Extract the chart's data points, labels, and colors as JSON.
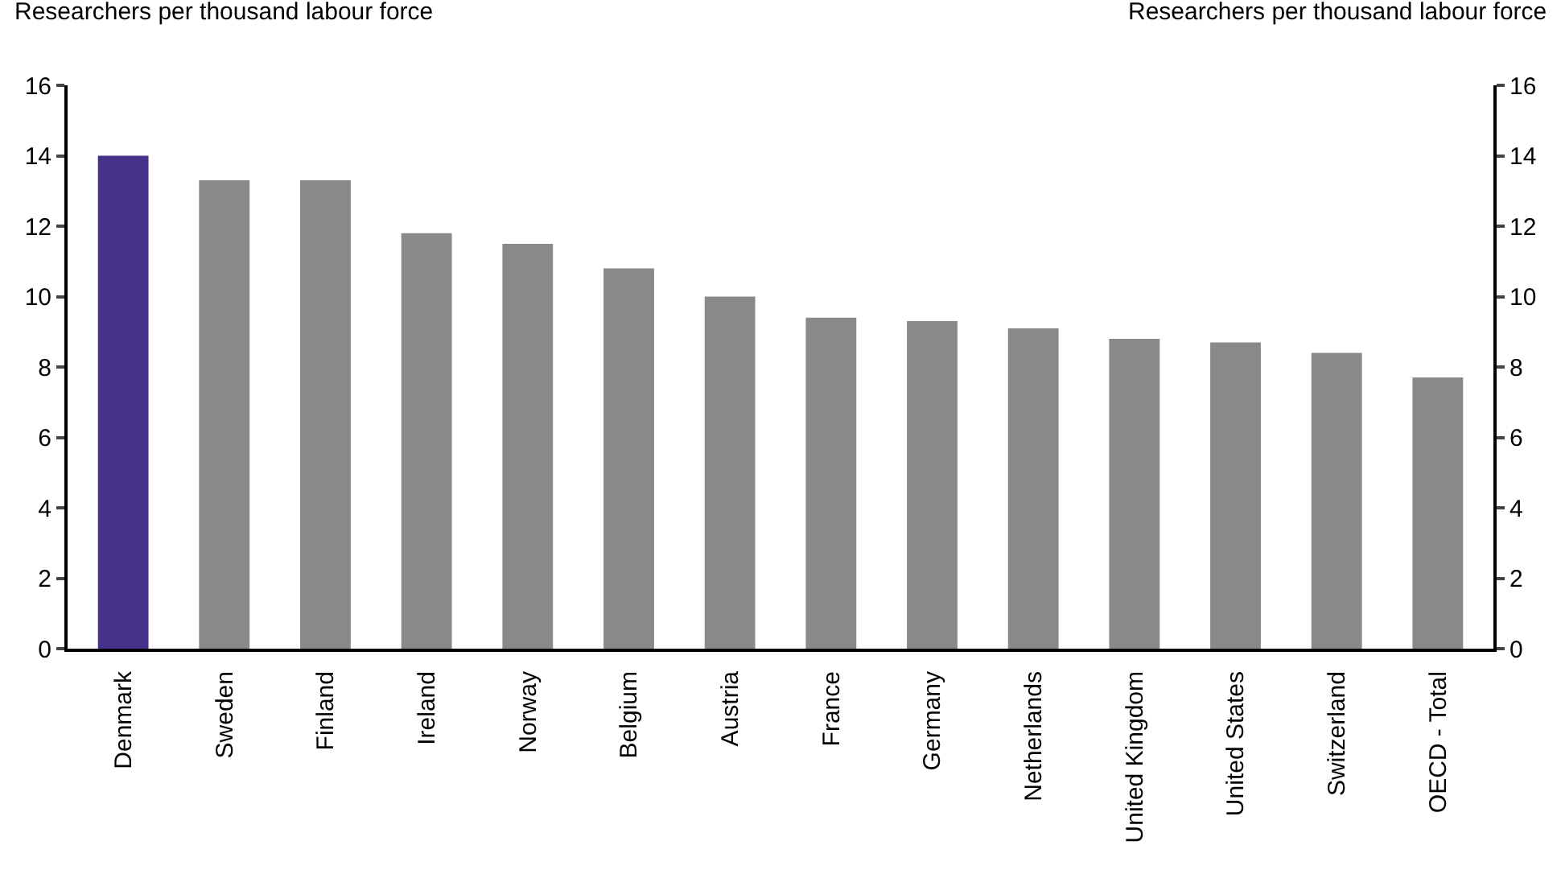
{
  "chart_data": {
    "type": "bar",
    "ylabel": "Researchers per thousand labour force",
    "y2label": "Researchers per thousand labour force",
    "categories": [
      "Denmark",
      "Sweden",
      "Finland",
      "Ireland",
      "Norway",
      "Belgium",
      "Austria",
      "France",
      "Germany",
      "Netherlands",
      "United Kingdom",
      "United States",
      "Switzerland",
      "OECD - Total"
    ],
    "values": [
      14.0,
      13.3,
      13.3,
      11.8,
      11.5,
      10.8,
      10.0,
      9.4,
      9.3,
      9.1,
      8.8,
      8.7,
      8.4,
      7.7
    ],
    "colors": [
      "#46328a",
      "#898989",
      "#898989",
      "#898989",
      "#898989",
      "#898989",
      "#898989",
      "#898989",
      "#898989",
      "#898989",
      "#898989",
      "#898989",
      "#898989",
      "#898989"
    ],
    "ylim": [
      0,
      16
    ],
    "yticks": [
      0,
      2,
      4,
      6,
      8,
      10,
      12,
      14,
      16
    ],
    "y2lim": [
      0,
      16
    ],
    "y2ticks": [
      0,
      2,
      4,
      6,
      8,
      10,
      12,
      14,
      16
    ],
    "grid": false
  }
}
